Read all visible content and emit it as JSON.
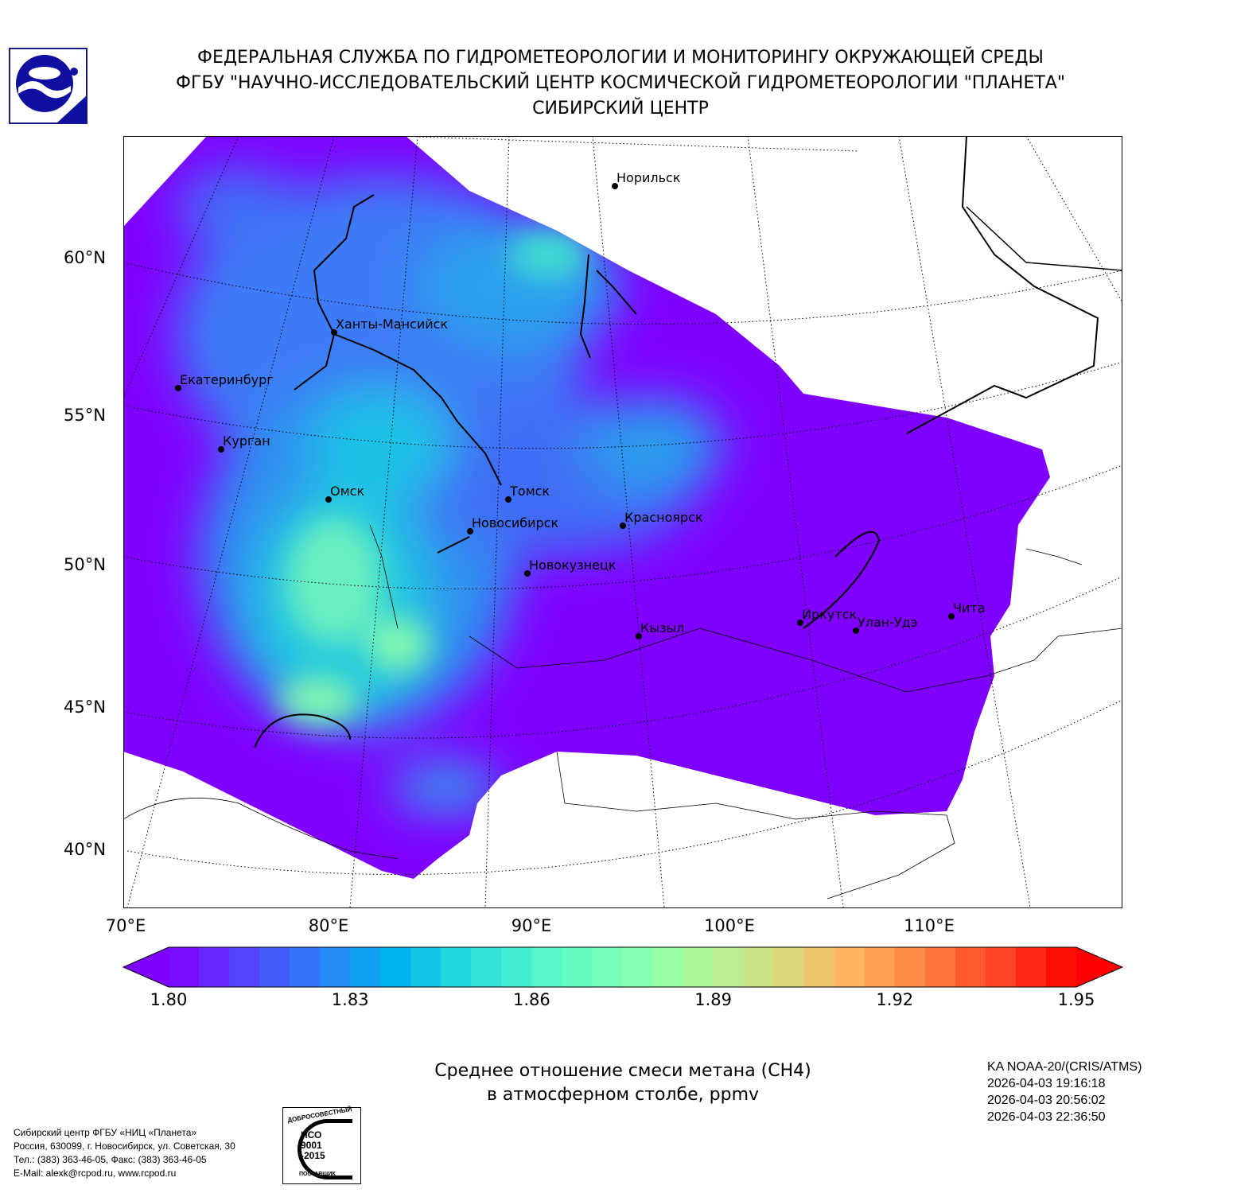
{
  "header": {
    "line1": "ФЕДЕРАЛЬНАЯ СЛУЖБА ПО ГИДРОМЕТЕОРОЛОГИИ И МОНИТОРИНГУ ОКРУЖАЮЩЕЙ СРЕДЫ",
    "line2": "ФГБУ \"НАУЧНО-ИССЛЕДОВАТЕЛЬСКИЙ ЦЕНТР КОСМИЧЕСКОЙ ГИДРОМЕТЕОРОЛОГИИ \"ПЛАНЕТА\"",
    "line3": "СИБИРСКИЙ ЦЕНТР"
  },
  "map": {
    "lat_labels": [
      "60°N",
      "55°N",
      "50°N",
      "45°N",
      "40°N"
    ],
    "lon_labels": [
      "70°E",
      "80°E",
      "90°E",
      "100°E",
      "110°E"
    ],
    "cities": [
      {
        "name": "Норильск"
      },
      {
        "name": "Ханты-Мансийск"
      },
      {
        "name": "Екатеринбург"
      },
      {
        "name": "Курган"
      },
      {
        "name": "Омск"
      },
      {
        "name": "Томск"
      },
      {
        "name": "Новосибирск"
      },
      {
        "name": "Красноярск"
      },
      {
        "name": "Новокузнецк"
      },
      {
        "name": "Кызыл"
      },
      {
        "name": "Иркутск"
      },
      {
        "name": "Улан-Удэ"
      },
      {
        "name": "Чита"
      }
    ],
    "no_data_color": "#ffffff",
    "base_color": "#8000ff"
  },
  "colorbar": {
    "min": 1.8,
    "max": 1.95,
    "step": 0.005,
    "ticks": [
      "1.80",
      "1.83",
      "1.86",
      "1.89",
      "1.92",
      "1.95"
    ],
    "colormap": "rainbow",
    "extend": "both"
  },
  "caption": {
    "line1": "Среднее отношение смеси метана (CH4)",
    "line2": "в атмосферном столбе, ppmv"
  },
  "satellite": {
    "name": "KA NOAA-20/(CRIS/ATMS)",
    "times": [
      "2026-04-03 19:16:18",
      "2026-04-03 20:56:02",
      "2026-04-03 22:36:50"
    ]
  },
  "footer": {
    "lines": [
      "Сибирский центр ФГБУ «НИЦ «Планета»",
      "Россия, 630099, г. Новосибирск, ул. Советская, 30",
      "Тел.: (383) 363-46-05, Факс: (383) 363-46-05",
      "E-Mail: alexk@rcpod.ru, www.rcpod.ru"
    ],
    "iso_badge": {
      "top": "ДОБРОСОВЕСТНЫЙ",
      "mid1": "ИСО",
      "mid2": "9001",
      "mid3": "-2015",
      "bottom": "ПОСТАВЩИК"
    }
  }
}
